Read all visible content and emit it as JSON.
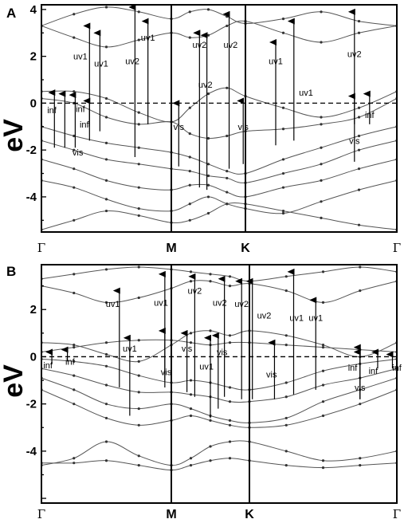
{
  "chart_data": [
    {
      "type": "line",
      "panel_label": "A",
      "ylabel": "eV",
      "ylim": [
        -5.5,
        4.2
      ],
      "yticks": [
        "4",
        "2",
        "0",
        "-2",
        "-4"
      ],
      "kpoints": [
        "Γ",
        "M",
        "K",
        "Γ"
      ],
      "fermi_level": 0,
      "series": [
        {
          "x": [
            0,
            0.25,
            0.5,
            0.75,
            1,
            1.25,
            1.5,
            1.75,
            2,
            2.25,
            2.5,
            2.75,
            3
          ],
          "values": [
            3.3,
            3.8,
            4.1,
            3.9,
            3.6,
            3.9,
            4.0,
            3.7,
            3.4,
            3.6,
            3.9,
            3.5,
            3.3
          ]
        },
        {
          "x": [
            0,
            0.25,
            0.5,
            0.75,
            1,
            1.25,
            1.5,
            1.75,
            2,
            2.25,
            2.5,
            2.75,
            3
          ],
          "values": [
            3.3,
            2.8,
            2.4,
            2.7,
            3.0,
            2.8,
            2.9,
            3.3,
            3.5,
            3.0,
            2.6,
            3.0,
            3.3
          ]
        },
        {
          "x": [
            0,
            0.25,
            0.5,
            0.75,
            1,
            1.25,
            1.5,
            1.75,
            2,
            2.25,
            2.5,
            2.75,
            3
          ],
          "values": [
            0.5,
            0.5,
            0.2,
            -0.4,
            -0.8,
            -0.2,
            0.4,
            0.65,
            0.3,
            -0.2,
            -0.6,
            -0.2,
            0.5
          ]
        },
        {
          "x": [
            0,
            0.25,
            0.5,
            0.75,
            1,
            1.25,
            1.5,
            1.75,
            2,
            2.25,
            2.5,
            2.75,
            3
          ],
          "values": [
            0.2,
            0.0,
            -0.6,
            -0.9,
            -0.8,
            -1.3,
            -1.5,
            -1.4,
            -1.2,
            -1.1,
            -0.9,
            -0.6,
            0.2
          ]
        },
        {
          "x": [
            0,
            0.25,
            0.5,
            0.75,
            1,
            1.25,
            1.5,
            1.75,
            2,
            2.25,
            2.5,
            2.75,
            3
          ],
          "values": [
            -1.0,
            -1.4,
            -1.7,
            -1.9,
            -2.1,
            -2.3,
            -2.6,
            -2.9,
            -3.0,
            -2.4,
            -1.9,
            -1.4,
            -1.0
          ]
        },
        {
          "x": [
            0,
            0.25,
            0.5,
            0.75,
            1,
            1.25,
            1.5,
            1.75,
            2,
            2.25,
            2.5,
            2.75,
            3
          ],
          "values": [
            -1.6,
            -2.0,
            -2.4,
            -2.6,
            -2.8,
            -2.9,
            -3.1,
            -3.2,
            -3.4,
            -3.0,
            -2.6,
            -2.0,
            -1.6
          ]
        },
        {
          "x": [
            0,
            0.25,
            0.5,
            0.75,
            1,
            1.25,
            1.5,
            1.75,
            2,
            2.25,
            2.5,
            2.75,
            3
          ],
          "values": [
            -2.4,
            -2.8,
            -3.3,
            -3.6,
            -3.7,
            -3.5,
            -3.5,
            -3.8,
            -4.0,
            -3.6,
            -3.3,
            -2.8,
            -2.4
          ]
        },
        {
          "x": [
            0,
            0.25,
            0.5,
            0.75,
            1,
            1.25,
            1.5,
            1.75,
            2,
            2.25,
            2.5,
            2.75,
            3
          ],
          "values": [
            -3.3,
            -3.6,
            -4.1,
            -4.5,
            -4.6,
            -4.3,
            -4.0,
            -4.3,
            -4.5,
            -4.7,
            -4.2,
            -3.7,
            -3.3
          ]
        },
        {
          "x": [
            0,
            0.25,
            0.5,
            0.75,
            1,
            1.25,
            1.5,
            1.75,
            2,
            2.25,
            2.5,
            2.75,
            3
          ],
          "values": [
            -5.4,
            -5.0,
            -4.6,
            -4.8,
            -5.1,
            -5.0,
            -4.7,
            -4.3,
            -4.3,
            -4.6,
            -4.9,
            -5.2,
            -5.4
          ]
        }
      ],
      "transitions": [
        {
          "x": 0.1,
          "from": -1.9,
          "to": 0.45,
          "label": "inf",
          "lx": 0.08,
          "ly": -0.3
        },
        {
          "x": 0.18,
          "from": -1.9,
          "to": 0.4,
          "label": "inf",
          "lx": 0.3,
          "ly": -0.25
        },
        {
          "x": 0.26,
          "from": -1.9,
          "to": 0.35,
          "label": "inf",
          "lx": 0.33,
          "ly": -0.9
        },
        {
          "x": 0.37,
          "from": -1.6,
          "to": 0.1,
          "label": "vis",
          "lx": 0.28,
          "ly": -2.1
        },
        {
          "x": 0.37,
          "from": -1.0,
          "to": 3.3,
          "label": "uv1",
          "lx": 0.3,
          "ly": 2.0
        },
        {
          "x": 0.45,
          "from": -1.2,
          "to": 3.0,
          "label": "uv1",
          "lx": 0.46,
          "ly": 1.7
        },
        {
          "x": 0.72,
          "from": -2.3,
          "to": 4.1,
          "label": "uv2",
          "lx": 0.7,
          "ly": 1.8
        },
        {
          "x": 0.82,
          "from": -0.9,
          "to": 3.5,
          "label": "uv1",
          "lx": 0.82,
          "ly": 2.8
        },
        {
          "x": 1.1,
          "from": -2.7,
          "to": 0.0,
          "label": "vis",
          "lx": 1.1,
          "ly": -1.0
        },
        {
          "x": 1.38,
          "from": -3.6,
          "to": 3.0,
          "label": "uv2",
          "lx": 1.38,
          "ly": 2.5
        },
        {
          "x": 1.48,
          "from": -3.7,
          "to": 2.9,
          "label": "uv2",
          "lx": 1.46,
          "ly": 0.8
        },
        {
          "x": 1.78,
          "from": -2.8,
          "to": 3.8,
          "label": "uv2",
          "lx": 1.8,
          "ly": 2.5
        },
        {
          "x": 1.97,
          "from": -2.6,
          "to": 0.1,
          "label": "vis",
          "lx": 1.97,
          "ly": -1.0
        },
        {
          "x": 2.2,
          "from": -1.8,
          "to": 2.6,
          "label": "uv1",
          "lx": 2.2,
          "ly": 1.8
        },
        {
          "x": 2.32,
          "from": -1.6,
          "to": 3.5,
          "label": "uv1",
          "lx": 2.4,
          "ly": 0.45
        },
        {
          "x": 2.72,
          "from": -2.5,
          "to": 3.9,
          "label": "uv2",
          "lx": 2.72,
          "ly": 2.1
        },
        {
          "x": 2.72,
          "from": -0.9,
          "to": 0.3,
          "label": "vis",
          "lx": 2.72,
          "ly": -1.6
        },
        {
          "x": 2.82,
          "from": -0.9,
          "to": 0.4,
          "label": "inf",
          "lx": 2.82,
          "ly": -0.5
        }
      ]
    },
    {
      "type": "line",
      "panel_label": "B",
      "ylabel": "eV",
      "ylim": [
        -6.2,
        3.9
      ],
      "yticks": [
        "2",
        "0",
        "-2",
        "-4"
      ],
      "kpoints": [
        "Γ",
        "M",
        "K",
        "Γ"
      ],
      "fermi_level": 0,
      "series": [
        {
          "x": [
            0,
            0.25,
            0.5,
            0.75,
            1,
            1.25,
            1.5,
            1.75,
            2,
            2.25,
            2.5,
            2.75,
            3
          ],
          "values": [
            3.3,
            3.5,
            3.7,
            3.8,
            3.7,
            3.6,
            3.5,
            3.4,
            3.2,
            3.4,
            3.6,
            3.8,
            3.6
          ]
        },
        {
          "x": [
            0,
            0.25,
            0.5,
            0.75,
            1,
            1.25,
            1.5,
            1.75,
            2,
            2.25,
            2.5,
            2.75,
            3
          ],
          "values": [
            3.0,
            2.7,
            2.3,
            2.5,
            2.9,
            3.2,
            3.2,
            3.0,
            3.1,
            2.8,
            2.3,
            2.8,
            3.2
          ]
        },
        {
          "x": [
            0,
            0.25,
            0.5,
            0.75,
            1,
            1.25,
            1.5,
            1.75,
            2,
            2.25,
            2.5,
            2.75,
            3
          ],
          "values": [
            0.6,
            0.5,
            0.1,
            -0.2,
            0.5,
            1.0,
            1.1,
            0.9,
            1.1,
            0.9,
            0.5,
            0.0,
            0.6
          ]
        },
        {
          "x": [
            0,
            0.25,
            0.5,
            0.75,
            1,
            1.25,
            1.5,
            1.75,
            2,
            2.25,
            2.5,
            2.75,
            3
          ],
          "values": [
            0.2,
            0.4,
            0.6,
            0.7,
            0.7,
            0.6,
            0.5,
            0.6,
            0.6,
            0.5,
            0.4,
            0.3,
            0.2
          ]
        },
        {
          "x": [
            0,
            0.25,
            0.5,
            0.75,
            1,
            1.25,
            1.5,
            1.75,
            2,
            2.25,
            2.5,
            2.75,
            3
          ],
          "values": [
            -0.1,
            -0.2,
            -0.4,
            -0.8,
            -1.1,
            -1.0,
            -1.1,
            -1.3,
            -1.4,
            -1.1,
            -0.6,
            -0.3,
            -0.1
          ]
        },
        {
          "x": [
            0,
            0.25,
            0.5,
            0.75,
            1,
            1.25,
            1.5,
            1.75,
            2,
            2.25,
            2.5,
            2.75,
            3
          ],
          "values": [
            -0.5,
            -0.8,
            -1.2,
            -1.5,
            -1.5,
            -1.6,
            -1.7,
            -1.9,
            -1.9,
            -1.7,
            -1.2,
            -0.9,
            -0.5
          ]
        },
        {
          "x": [
            0,
            0.25,
            0.5,
            0.75,
            1,
            1.25,
            1.5,
            1.75,
            2,
            2.25,
            2.5,
            2.75,
            3
          ],
          "values": [
            -0.9,
            -1.4,
            -2.0,
            -2.2,
            -2.0,
            -2.2,
            -2.5,
            -2.7,
            -2.8,
            -2.6,
            -1.9,
            -1.4,
            -0.9
          ]
        },
        {
          "x": [
            0,
            0.25,
            0.5,
            0.75,
            1,
            1.25,
            1.5,
            1.75,
            2,
            2.25,
            2.5,
            2.75,
            3
          ],
          "values": [
            -1.4,
            -2.0,
            -2.6,
            -2.9,
            -2.7,
            -2.5,
            -2.7,
            -2.9,
            -3.0,
            -2.9,
            -2.5,
            -2.0,
            -1.4
          ]
        },
        {
          "x": [
            0,
            0.25,
            0.5,
            0.75,
            1,
            1.25,
            1.5,
            1.75,
            2,
            2.25,
            2.5,
            2.75,
            3
          ],
          "values": [
            -4.6,
            -4.3,
            -3.6,
            -4.2,
            -4.6,
            -4.3,
            -3.8,
            -3.6,
            -3.6,
            -4.0,
            -4.4,
            -4.3,
            -4.0
          ]
        },
        {
          "x": [
            0,
            0.25,
            0.5,
            0.75,
            1,
            1.25,
            1.5,
            1.75,
            2,
            2.25,
            2.5,
            2.75,
            3
          ],
          "values": [
            -4.5,
            -4.5,
            -4.4,
            -4.6,
            -4.8,
            -4.6,
            -4.4,
            -4.3,
            -4.4,
            -4.6,
            -4.7,
            -4.6,
            -4.5
          ]
        }
      ],
      "transitions": [
        {
          "x": 0.08,
          "from": -0.3,
          "to": 0.2,
          "label": "inf",
          "lx": 0.05,
          "ly": -0.35
        },
        {
          "x": 0.2,
          "from": -0.2,
          "to": 0.3,
          "label": "inf",
          "lx": 0.22,
          "ly": -0.2
        },
        {
          "x": 0.6,
          "from": -1.3,
          "to": 2.8,
          "label": "uv1",
          "lx": 0.55,
          "ly": 2.25
        },
        {
          "x": 0.68,
          "from": -2.5,
          "to": 0.8,
          "label": "uv1",
          "lx": 0.68,
          "ly": 0.35
        },
        {
          "x": 0.95,
          "from": -1.3,
          "to": 3.5,
          "label": "uv1",
          "lx": 0.92,
          "ly": 2.3
        },
        {
          "x": 0.95,
          "from": -1.0,
          "to": 1.1,
          "label": "vis",
          "lx": 0.96,
          "ly": -0.65
        },
        {
          "x": 1.2,
          "from": -1.5,
          "to": 1.0,
          "label": "vis",
          "lx": 1.2,
          "ly": 0.35
        },
        {
          "x": 1.3,
          "from": -1.7,
          "to": 3.4,
          "label": "uv2",
          "lx": 1.3,
          "ly": 2.8
        },
        {
          "x": 1.5,
          "from": -2.6,
          "to": 0.8,
          "label": "uv1",
          "lx": 1.45,
          "ly": -0.4
        },
        {
          "x": 1.68,
          "from": -1.7,
          "to": 3.3,
          "label": "uv2",
          "lx": 1.62,
          "ly": 2.3
        },
        {
          "x": 1.6,
          "from": -2.2,
          "to": 0.9,
          "label": "vis",
          "lx": 1.65,
          "ly": 0.2
        },
        {
          "x": 1.9,
          "from": -1.8,
          "to": 3.2,
          "label": "uv2",
          "lx": 1.9,
          "ly": 2.25
        },
        {
          "x": 2.02,
          "from": -1.8,
          "to": 3.2,
          "label": "uv2",
          "lx": 2.1,
          "ly": 1.75
        },
        {
          "x": 2.17,
          "from": -1.8,
          "to": 0.6,
          "label": "vis",
          "lx": 2.15,
          "ly": -0.75
        },
        {
          "x": 2.3,
          "from": -1.6,
          "to": 3.6,
          "label": "uv1",
          "lx": 2.32,
          "ly": 1.65
        },
        {
          "x": 2.45,
          "from": -1.4,
          "to": 2.4,
          "label": "uv1",
          "lx": 2.45,
          "ly": 1.65
        },
        {
          "x": 2.75,
          "from": -1.8,
          "to": 0.4,
          "label": "inf",
          "lx": 2.7,
          "ly": -0.45
        },
        {
          "x": 2.75,
          "from": -1.8,
          "to": 0.2,
          "label": "vis",
          "lx": 2.75,
          "ly": -1.3
        },
        {
          "x": 2.87,
          "from": -0.5,
          "to": 0.2,
          "label": "inf",
          "lx": 2.84,
          "ly": -0.6
        },
        {
          "x": 2.97,
          "from": -0.5,
          "to": 0.1,
          "label": "inf",
          "lx": 3.0,
          "ly": -0.45
        }
      ]
    }
  ]
}
